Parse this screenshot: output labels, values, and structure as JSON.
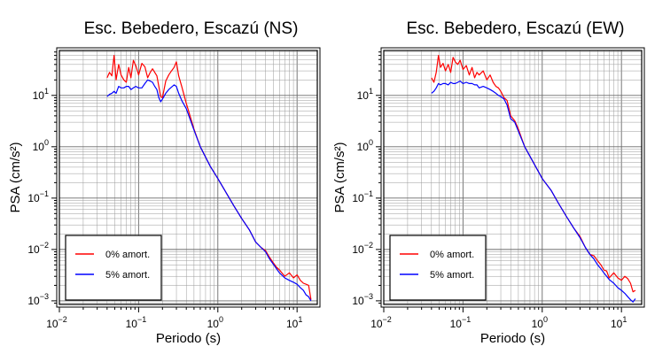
{
  "chart_data": [
    {
      "type": "line",
      "title": "Esc. Bebedero, Escazú (NS)",
      "xlabel": "Periodo (s)",
      "ylabel": "PSA (cm/s²)",
      "xscale": "log",
      "yscale": "log",
      "xlim": [
        0.01,
        18
      ],
      "ylim": [
        0.00085,
        75
      ],
      "grid": true,
      "legend_position": "bottom-left",
      "xticks": [
        {
          "v": 0.01,
          "b": "10",
          "e": "−2"
        },
        {
          "v": 0.1,
          "b": "10",
          "e": "−1"
        },
        {
          "v": 1,
          "b": "10",
          "e": "0"
        },
        {
          "v": 10,
          "b": "10",
          "e": "1"
        }
      ],
      "yticks": [
        {
          "v": 0.001,
          "b": "10",
          "e": "−3"
        },
        {
          "v": 0.01,
          "b": "10",
          "e": "−2"
        },
        {
          "v": 0.1,
          "b": "10",
          "e": "−1"
        },
        {
          "v": 1,
          "b": "10",
          "e": "0"
        },
        {
          "v": 10,
          "b": "10",
          "e": "1"
        }
      ],
      "series": [
        {
          "name": "0% amort.",
          "color": "#ff0000",
          "x": [
            0.04,
            0.043,
            0.046,
            0.049,
            0.052,
            0.056,
            0.06,
            0.065,
            0.07,
            0.075,
            0.08,
            0.086,
            0.092,
            0.1,
            0.11,
            0.12,
            0.13,
            0.14,
            0.15,
            0.16,
            0.17,
            0.18,
            0.19,
            0.2,
            0.22,
            0.24,
            0.26,
            0.28,
            0.3,
            0.32,
            0.35,
            0.4,
            0.5,
            0.6,
            0.8,
            1.0,
            1.3,
            1.6,
            2.0,
            2.5,
            3.0,
            3.5,
            4.0,
            4.5,
            5.0,
            5.5,
            6.0,
            7.0,
            8.0,
            9.0,
            10.0,
            11.0,
            12.0,
            13.0,
            14.0,
            15.0
          ],
          "y": [
            22,
            28,
            24,
            60,
            20,
            40,
            25,
            20,
            18,
            35,
            22,
            48,
            38,
            25,
            42,
            36,
            22,
            28,
            33,
            28,
            24,
            15,
            9.5,
            9,
            19,
            25,
            30,
            35,
            45,
            24,
            15,
            7,
            2.2,
            1.0,
            0.42,
            0.24,
            0.12,
            0.07,
            0.04,
            0.024,
            0.014,
            0.011,
            0.0095,
            0.007,
            0.0055,
            0.0045,
            0.004,
            0.003,
            0.0035,
            0.0028,
            0.0032,
            0.0025,
            0.0022,
            0.0021,
            0.002,
            0.00105
          ]
        },
        {
          "name": "5% amort.",
          "color": "#0000ff",
          "x": [
            0.04,
            0.043,
            0.046,
            0.049,
            0.052,
            0.056,
            0.06,
            0.065,
            0.07,
            0.075,
            0.08,
            0.086,
            0.092,
            0.1,
            0.11,
            0.12,
            0.13,
            0.14,
            0.15,
            0.16,
            0.17,
            0.18,
            0.19,
            0.2,
            0.22,
            0.24,
            0.26,
            0.28,
            0.3,
            0.32,
            0.35,
            0.4,
            0.5,
            0.6,
            0.8,
            1.0,
            1.3,
            1.6,
            2.0,
            2.5,
            3.0,
            3.5,
            4.0,
            4.5,
            5.0,
            5.5,
            6.0,
            7.0,
            8.0,
            9.0,
            10.0,
            11.0,
            12.0,
            13.0,
            14.0,
            15.0
          ],
          "y": [
            9.5,
            10.5,
            11,
            12,
            11,
            15,
            14,
            14,
            15,
            15,
            13,
            14,
            15,
            14,
            14,
            17,
            20,
            19,
            18,
            15,
            13,
            9,
            7.5,
            8.5,
            11,
            13,
            14.5,
            16,
            15,
            11,
            8,
            5.5,
            2.1,
            1.0,
            0.42,
            0.24,
            0.12,
            0.07,
            0.04,
            0.024,
            0.014,
            0.011,
            0.009,
            0.0065,
            0.0052,
            0.0042,
            0.0035,
            0.0028,
            0.0025,
            0.0023,
            0.0021,
            0.0018,
            0.0016,
            0.0013,
            0.0012,
            0.001
          ]
        }
      ]
    },
    {
      "type": "line",
      "title": "Esc. Bebedero, Escazú (EW)",
      "xlabel": "Periodo (s)",
      "ylabel": "PSA (cm/s²)",
      "xscale": "log",
      "yscale": "log",
      "xlim": [
        0.01,
        18
      ],
      "ylim": [
        0.00085,
        75
      ],
      "grid": true,
      "legend_position": "bottom-left",
      "xticks": [
        {
          "v": 0.01,
          "b": "10",
          "e": "−2"
        },
        {
          "v": 0.1,
          "b": "10",
          "e": "−1"
        },
        {
          "v": 1,
          "b": "10",
          "e": "0"
        },
        {
          "v": 10,
          "b": "10",
          "e": "1"
        }
      ],
      "yticks": [
        {
          "v": 0.001,
          "b": "10",
          "e": "−3"
        },
        {
          "v": 0.01,
          "b": "10",
          "e": "−2"
        },
        {
          "v": 0.1,
          "b": "10",
          "e": "−1"
        },
        {
          "v": 1,
          "b": "10",
          "e": "0"
        },
        {
          "v": 10,
          "b": "10",
          "e": "1"
        }
      ],
      "series": [
        {
          "name": "0% amort.",
          "color": "#ff0000",
          "x": [
            0.04,
            0.043,
            0.046,
            0.049,
            0.052,
            0.056,
            0.06,
            0.065,
            0.07,
            0.075,
            0.08,
            0.086,
            0.092,
            0.1,
            0.11,
            0.12,
            0.13,
            0.14,
            0.15,
            0.16,
            0.18,
            0.2,
            0.22,
            0.24,
            0.26,
            0.28,
            0.3,
            0.33,
            0.36,
            0.4,
            0.45,
            0.5,
            0.6,
            0.8,
            1.0,
            1.3,
            1.6,
            2.0,
            2.5,
            3.0,
            3.5,
            4.0,
            4.5,
            5.0,
            5.5,
            6.0,
            6.5,
            7.0,
            8.0,
            9.0,
            10.0,
            11.0,
            12.0,
            13.0,
            14.0,
            15.0
          ],
          "y": [
            22,
            18,
            28,
            60,
            35,
            42,
            30,
            40,
            28,
            55,
            45,
            40,
            48,
            32,
            38,
            25,
            35,
            22,
            28,
            25,
            30,
            20,
            25,
            18,
            15,
            14,
            12,
            9,
            8,
            4,
            3.2,
            2.2,
            1.0,
            0.45,
            0.24,
            0.14,
            0.08,
            0.045,
            0.026,
            0.018,
            0.011,
            0.008,
            0.0075,
            0.006,
            0.005,
            0.004,
            0.0038,
            0.0028,
            0.0035,
            0.0028,
            0.0025,
            0.003,
            0.0027,
            0.0022,
            0.0015,
            0.0016
          ]
        },
        {
          "name": "5% amort.",
          "color": "#0000ff",
          "x": [
            0.04,
            0.043,
            0.046,
            0.049,
            0.052,
            0.056,
            0.06,
            0.065,
            0.07,
            0.075,
            0.08,
            0.086,
            0.092,
            0.1,
            0.11,
            0.12,
            0.13,
            0.14,
            0.15,
            0.16,
            0.18,
            0.2,
            0.22,
            0.24,
            0.26,
            0.28,
            0.3,
            0.33,
            0.36,
            0.4,
            0.45,
            0.5,
            0.6,
            0.8,
            1.0,
            1.3,
            1.6,
            2.0,
            2.5,
            3.0,
            3.5,
            4.0,
            4.5,
            5.0,
            5.5,
            6.0,
            6.5,
            7.0,
            8.0,
            9.0,
            10.0,
            11.0,
            12.0,
            13.0,
            14.0,
            15.0
          ],
          "y": [
            11,
            12,
            14,
            17,
            16,
            17,
            17,
            16,
            18,
            17,
            17,
            18,
            19,
            17,
            18,
            17,
            17,
            16,
            16,
            14,
            15,
            14,
            13,
            12,
            11,
            10,
            9.5,
            8.5,
            6.5,
            3.5,
            3.0,
            2.0,
            1.0,
            0.45,
            0.24,
            0.14,
            0.08,
            0.045,
            0.026,
            0.017,
            0.011,
            0.008,
            0.0065,
            0.005,
            0.0042,
            0.0035,
            0.003,
            0.0026,
            0.0022,
            0.0018,
            0.0016,
            0.0014,
            0.0012,
            0.00105,
            0.00095,
            0.0011
          ]
        }
      ]
    }
  ]
}
